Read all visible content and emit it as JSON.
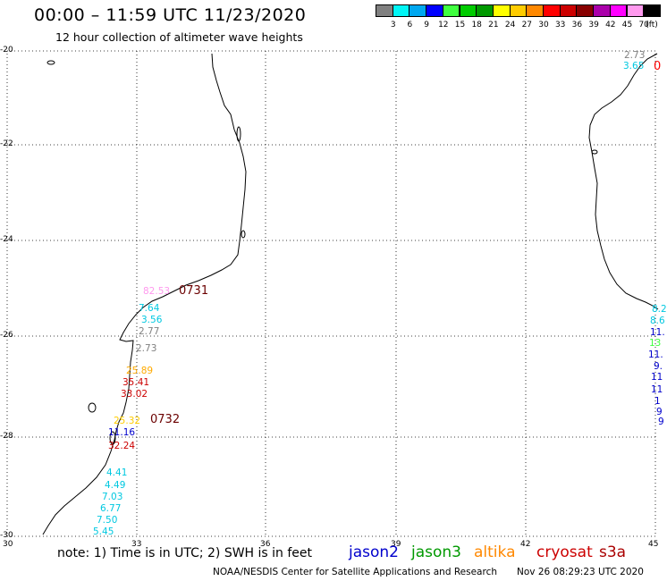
{
  "header": {
    "title": "00:00 – 11:59 UTC 11/23/2020",
    "subtitle": "12 hour collection of altimeter wave heights"
  },
  "legend": {
    "unit": "(ft)",
    "bins": [
      {
        "label": "3",
        "color": "#808080"
      },
      {
        "label": "6",
        "color": "#00f5f5"
      },
      {
        "label": "9",
        "color": "#00a8f0"
      },
      {
        "label": "12",
        "color": "#0000ff"
      },
      {
        "label": "15",
        "color": "#40ff40"
      },
      {
        "label": "18",
        "color": "#00cc00"
      },
      {
        "label": "21",
        "color": "#009900"
      },
      {
        "label": "24",
        "color": "#ffff00"
      },
      {
        "label": "27",
        "color": "#ffcc00"
      },
      {
        "label": "30",
        "color": "#ff8800"
      },
      {
        "label": "33",
        "color": "#ff0000"
      },
      {
        "label": "36",
        "color": "#cc0000"
      },
      {
        "label": "39",
        "color": "#880000"
      },
      {
        "label": "42",
        "color": "#aa00aa"
      },
      {
        "label": "45",
        "color": "#ff00ff"
      },
      {
        "label": "70",
        "color": "#ff99ee"
      },
      {
        "label": "",
        "color": "#000000"
      }
    ]
  },
  "map": {
    "lat_labels": [
      "-20",
      "-22",
      "-24",
      "-26",
      "-28",
      "-30"
    ],
    "lon_labels": [
      "30",
      "33",
      "36",
      "39",
      "42",
      "45"
    ]
  },
  "observations": {
    "west_track": [
      {
        "text": "82.53",
        "color": "#ff99ee"
      },
      {
        "text": "7.64",
        "color": "#00c8e0"
      },
      {
        "text": "3.56",
        "color": "#00c8e0"
      },
      {
        "text": "2.77",
        "color": "#808080"
      },
      {
        "text": "2.73",
        "color": "#808080"
      },
      {
        "text": "25.89",
        "color": "#ffaa00"
      },
      {
        "text": "35.41",
        "color": "#cc0000"
      },
      {
        "text": "33.02",
        "color": "#cc0000"
      },
      {
        "text": "25.32",
        "color": "#ffcc00"
      },
      {
        "text": "11.16",
        "color": "#0000cc"
      },
      {
        "text": "32.24",
        "color": "#cc0000"
      },
      {
        "text": "4.41",
        "color": "#00c8e0"
      },
      {
        "text": "4.49",
        "color": "#00c8e0"
      },
      {
        "text": "7.03",
        "color": "#00c8e0"
      },
      {
        "text": "6.77",
        "color": "#00c8e0"
      },
      {
        "text": "7.50",
        "color": "#00c8e0"
      },
      {
        "text": "5.45",
        "color": "#00c8e0"
      }
    ],
    "east_track": [
      {
        "text": "2.73",
        "color": "#808080"
      },
      {
        "text": "3.65",
        "color": "#00c8e0"
      },
      {
        "text": "0",
        "color": "#ff0000"
      },
      {
        "text": "8.2",
        "color": "#00c8e0"
      },
      {
        "text": "8.6",
        "color": "#00c8e0"
      },
      {
        "text": "11.",
        "color": "#0000cc"
      },
      {
        "text": "13",
        "color": "#40ff40"
      },
      {
        "text": "11.",
        "color": "#0000cc"
      },
      {
        "text": "9.",
        "color": "#0000cc"
      },
      {
        "text": "11",
        "color": "#0000cc"
      },
      {
        "text": "11",
        "color": "#0000cc"
      },
      {
        "text": "1",
        "color": "#0000cc"
      },
      {
        "text": "9",
        "color": "#0000cc"
      },
      {
        "text": "9",
        "color": "#0000cc"
      }
    ],
    "pass_times": [
      "0731",
      "0732"
    ]
  },
  "footer": {
    "note": "note: 1) Time is in UTC; 2) SWH is in feet",
    "satellites": [
      {
        "name": "jason2",
        "color": "#0000cc"
      },
      {
        "name": "jason3",
        "color": "#009900"
      },
      {
        "name": "altika",
        "color": "#ff8800"
      },
      {
        "name": "cryosat",
        "color": "#cc0000"
      },
      {
        "name": "s3a",
        "color": "#aa0000"
      }
    ],
    "credit": "NOAA/NESDIS Center for Satellite Applications and Research",
    "timestamp": "Nov 26 08:29:23 UTC 2020"
  }
}
